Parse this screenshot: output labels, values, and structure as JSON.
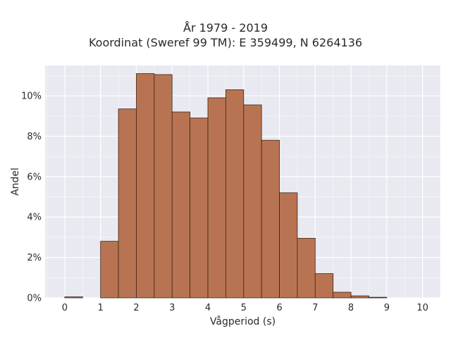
{
  "chart_data": {
    "type": "bar",
    "title": "År 1979 - 2019",
    "subtitle": "Koordinat (Sweref 99 TM): E 359499, N 6264136",
    "xlabel": "Vågperiod (s)",
    "ylabel": "Andel",
    "bin_width": 0.5,
    "bins": [
      0,
      0.5,
      1,
      1.5,
      2,
      2.5,
      3,
      3.5,
      4,
      4.5,
      5,
      5.5,
      6,
      6.5,
      7,
      7.5,
      8,
      8.5,
      9,
      9.5
    ],
    "values": [
      0.05,
      0,
      2.8,
      9.35,
      11.1,
      11.05,
      9.2,
      8.9,
      9.9,
      10.3,
      9.55,
      7.8,
      5.2,
      2.95,
      1.2,
      0.28,
      0.1,
      0.03,
      0,
      0
    ],
    "xlim": [
      -0.55,
      10.5
    ],
    "ylim": [
      0,
      11.5
    ],
    "xticks": [
      0,
      1,
      2,
      3,
      4,
      5,
      6,
      7,
      8,
      9,
      10
    ],
    "xtick_labels": [
      "0",
      "1",
      "2",
      "3",
      "4",
      "5",
      "6",
      "7",
      "8",
      "9",
      "10"
    ],
    "yticks": [
      0,
      2,
      4,
      6,
      8,
      10
    ],
    "ytick_labels": [
      "0%",
      "2%",
      "4%",
      "6%",
      "8%",
      "10%"
    ],
    "grid": true,
    "colors": {
      "bar": "#b87452",
      "bar_outline": "#3a2618",
      "plot_bg": "#e9e9f1",
      "grid": "#ffffff"
    }
  }
}
